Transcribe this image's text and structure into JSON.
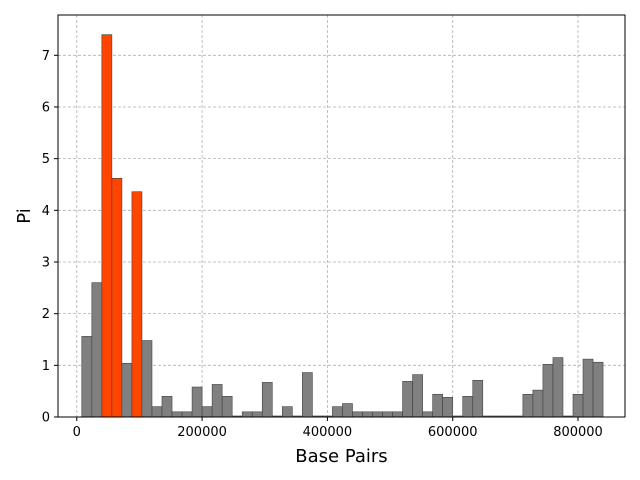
{
  "chart_data": {
    "type": "bar",
    "title": "",
    "xlabel": "Base Pairs",
    "ylabel": "Pi",
    "xlim": [
      -30000,
      875000
    ],
    "ylim": [
      0,
      7.78
    ],
    "xticks": [
      0,
      200000,
      400000,
      600000,
      800000
    ],
    "yticks": [
      0,
      1,
      2,
      3,
      4,
      5,
      6,
      7
    ],
    "grid": true,
    "bin_width": 16000,
    "colors": {
      "default": "#808080",
      "highlight": "#ff4500",
      "edge": "#404040"
    },
    "x": [
      16000,
      32000,
      48000,
      64000,
      80000,
      96000,
      112000,
      128000,
      144000,
      160000,
      176000,
      192000,
      208000,
      224000,
      240000,
      256000,
      272000,
      288000,
      304000,
      320000,
      336000,
      352000,
      368000,
      384000,
      400000,
      416000,
      432000,
      448000,
      464000,
      480000,
      496000,
      512000,
      528000,
      544000,
      560000,
      576000,
      592000,
      608000,
      624000,
      640000,
      656000,
      672000,
      688000,
      704000,
      720000,
      736000,
      752000,
      768000,
      784000,
      800000,
      816000,
      832000
    ],
    "values": [
      1.56,
      2.6,
      7.4,
      4.62,
      1.04,
      4.36,
      1.48,
      0.2,
      0.4,
      0.1,
      0.1,
      0.58,
      0.2,
      0.63,
      0.4,
      0.02,
      0.1,
      0.1,
      0.67,
      0.02,
      0.2,
      0.02,
      0.86,
      0.02,
      0.02,
      0.2,
      0.26,
      0.1,
      0.1,
      0.1,
      0.1,
      0.1,
      0.69,
      0.82,
      0.1,
      0.44,
      0.38,
      0.02,
      0.4,
      0.71,
      0.02,
      0.02,
      0.02,
      0.02,
      0.44,
      0.52,
      1.02,
      1.15,
      0.02,
      0.44,
      1.12,
      1.06
    ],
    "highlighted": [
      48000,
      64000,
      96000
    ]
  }
}
